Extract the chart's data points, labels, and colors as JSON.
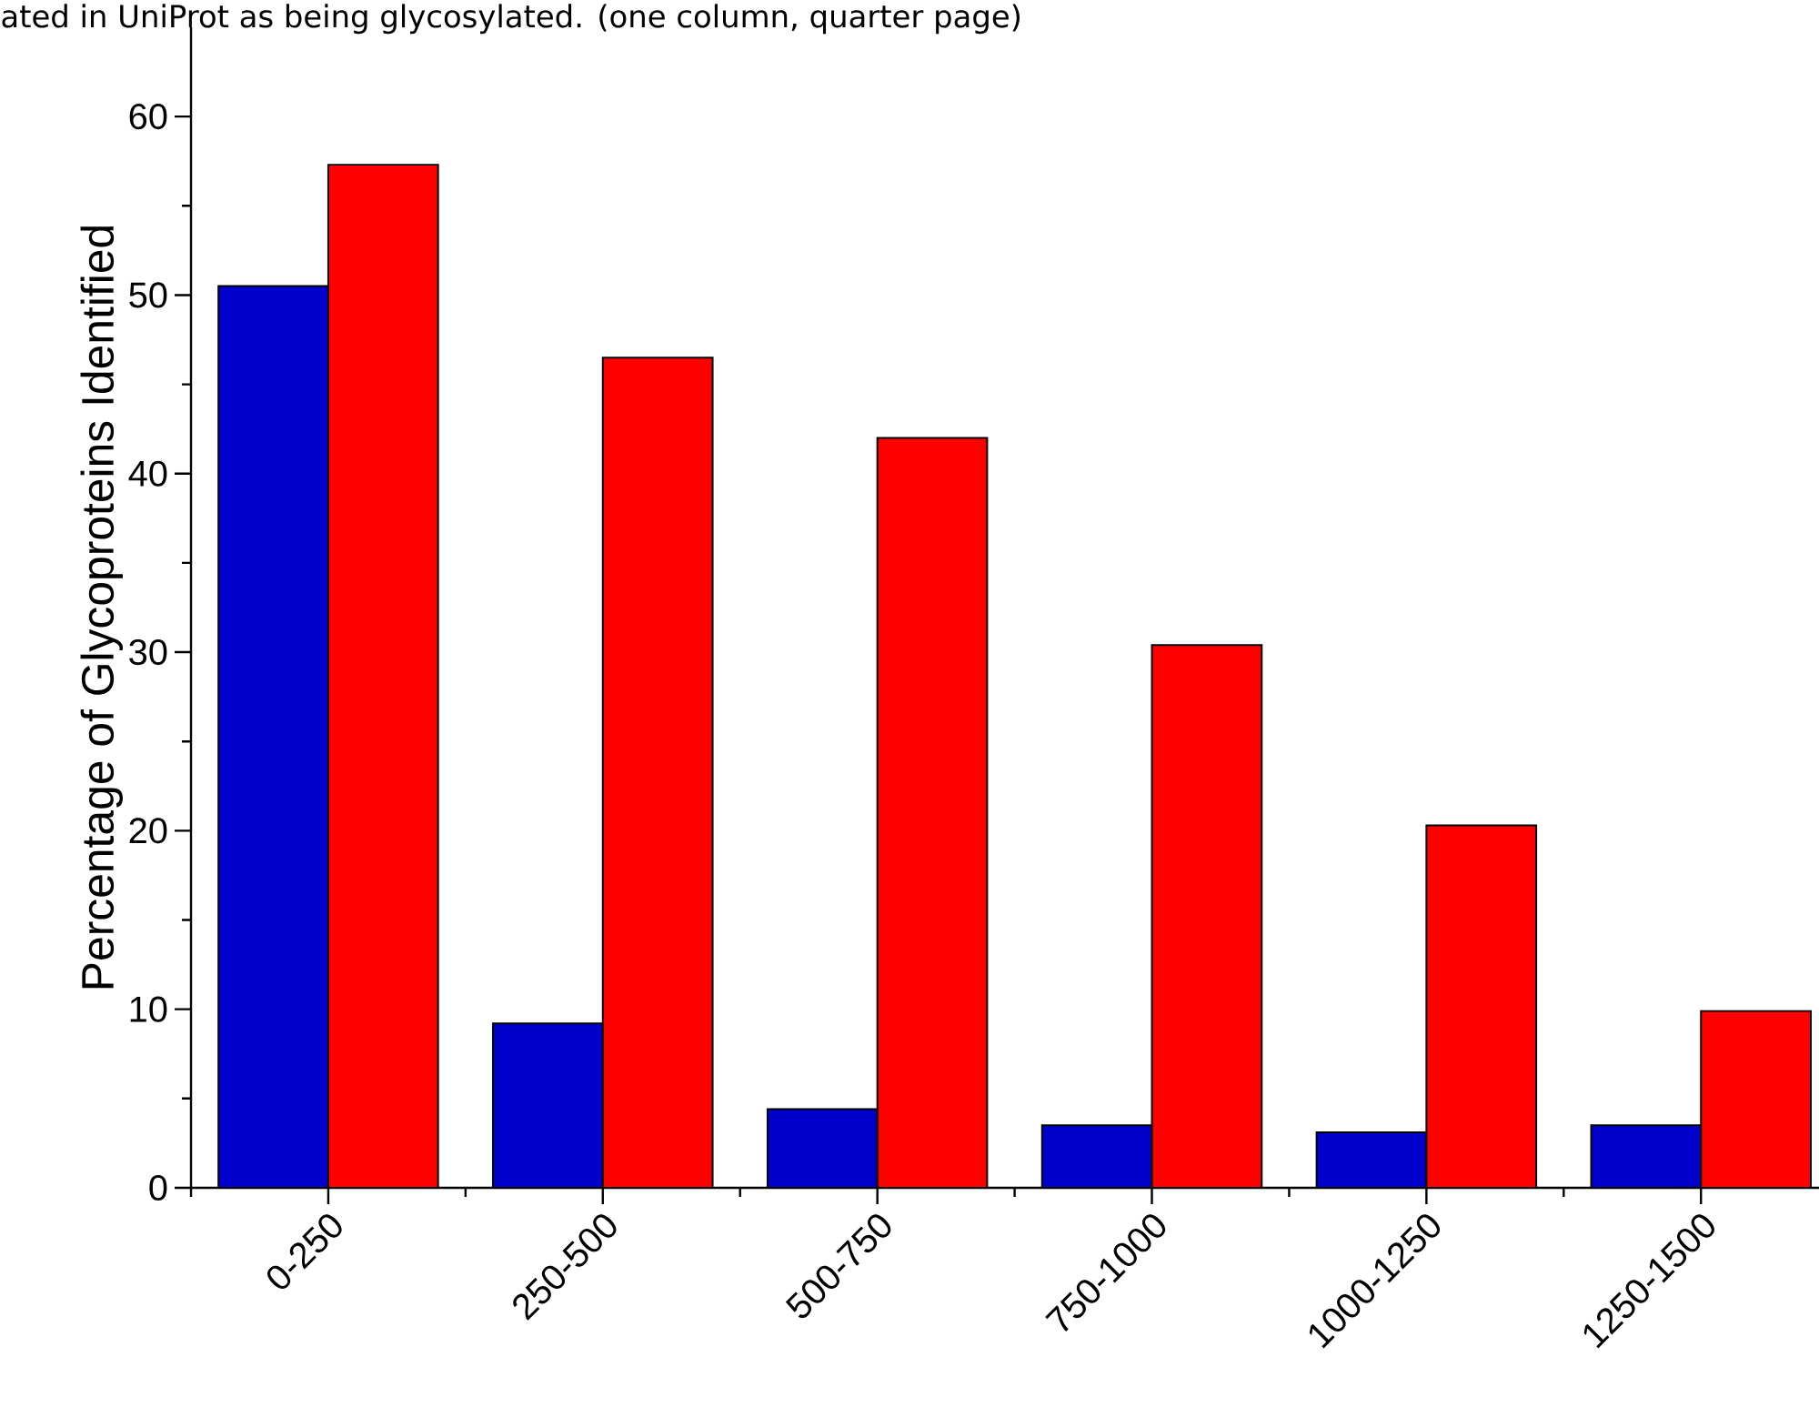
{
  "chart_data": {
    "type": "bar",
    "annotations": [
      "ated in UniProt as being glycosylated. (one column, quarter page)"
    ],
    "ylabel": "Percentage of Glycoproteins Identified",
    "categories": [
      "0-250",
      "250-500",
      "500-750",
      "750-1000",
      "1000-1250",
      "1250-1500"
    ],
    "series": [
      {
        "color": "#0000cc",
        "values": [
          50.5,
          9.2,
          4.4,
          3.5,
          3.1,
          3.5
        ]
      },
      {
        "color": "#ff0000",
        "values": [
          57.3,
          46.5,
          42.0,
          30.4,
          20.3,
          9.9
        ]
      }
    ],
    "ylim": [
      0,
      65
    ],
    "yticks": [
      0,
      10,
      20,
      30,
      40,
      50,
      60
    ],
    "grid": false
  }
}
